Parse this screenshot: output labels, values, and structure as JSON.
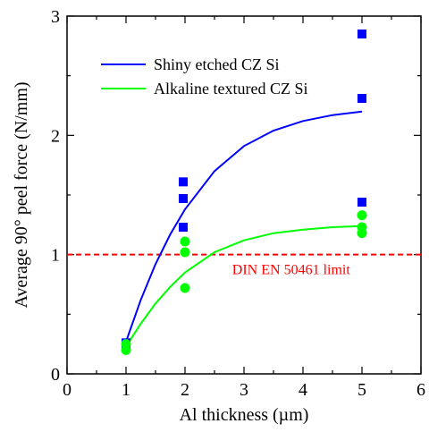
{
  "chart_data": {
    "type": "scatter",
    "title": "",
    "xlabel": "Al thickness (µm)",
    "ylabel": "Average 90° peel force (N/mm)",
    "xlim": [
      0,
      6
    ],
    "ylim": [
      0,
      3
    ],
    "x_ticks": [
      "0",
      "1",
      "2",
      "3",
      "4",
      "5",
      "6"
    ],
    "y_ticks": [
      "0",
      "1",
      "2",
      "3"
    ],
    "grid": false,
    "legend_position": "top-left",
    "series": [
      {
        "name": "Shiny etched CZ Si",
        "color": "#0000ff",
        "marker": "square",
        "points": [
          {
            "x": 1,
            "y": 0.26
          },
          {
            "x": 1,
            "y": 0.23
          },
          {
            "x": 1.97,
            "y": 1.61
          },
          {
            "x": 1.97,
            "y": 1.47
          },
          {
            "x": 1.97,
            "y": 1.23
          },
          {
            "x": 5,
            "y": 2.85
          },
          {
            "x": 5,
            "y": 2.31
          },
          {
            "x": 5,
            "y": 1.44
          }
        ],
        "fit": [
          {
            "x": 1,
            "y": 0.27
          },
          {
            "x": 1.25,
            "y": 0.62
          },
          {
            "x": 1.5,
            "y": 0.92
          },
          {
            "x": 1.75,
            "y": 1.17
          },
          {
            "x": 2,
            "y": 1.38
          },
          {
            "x": 2.5,
            "y": 1.7
          },
          {
            "x": 3,
            "y": 1.91
          },
          {
            "x": 3.5,
            "y": 2.04
          },
          {
            "x": 4,
            "y": 2.12
          },
          {
            "x": 4.5,
            "y": 2.17
          },
          {
            "x": 5,
            "y": 2.2
          }
        ]
      },
      {
        "name": "Alkaline textured CZ Si",
        "color": "#00ff00",
        "marker": "circle",
        "points": [
          {
            "x": 1,
            "y": 0.25
          },
          {
            "x": 1,
            "y": 0.2
          },
          {
            "x": 2,
            "y": 1.11
          },
          {
            "x": 2,
            "y": 1.02
          },
          {
            "x": 2,
            "y": 0.72
          },
          {
            "x": 5,
            "y": 1.33
          },
          {
            "x": 5,
            "y": 1.23
          },
          {
            "x": 5,
            "y": 1.18
          }
        ],
        "fit": [
          {
            "x": 1,
            "y": 0.23
          },
          {
            "x": 1.25,
            "y": 0.42
          },
          {
            "x": 1.5,
            "y": 0.59
          },
          {
            "x": 1.75,
            "y": 0.73
          },
          {
            "x": 2,
            "y": 0.85
          },
          {
            "x": 2.5,
            "y": 1.02
          },
          {
            "x": 3,
            "y": 1.12
          },
          {
            "x": 3.5,
            "y": 1.18
          },
          {
            "x": 4,
            "y": 1.21
          },
          {
            "x": 4.5,
            "y": 1.23
          },
          {
            "x": 5,
            "y": 1.24
          }
        ]
      }
    ],
    "reference_line": {
      "y": 1,
      "label": "DIN EN 50461 limit",
      "color": "#ff0000",
      "style": "dashed"
    }
  }
}
